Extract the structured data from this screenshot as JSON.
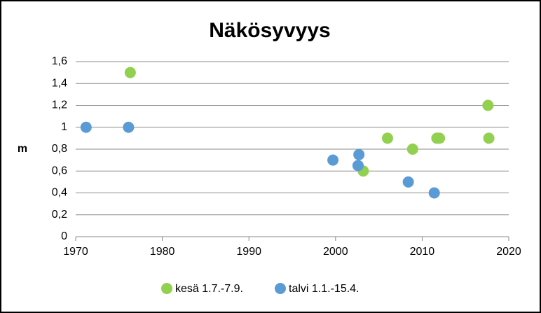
{
  "chart_data": {
    "type": "scatter",
    "title": "Näkösyvyys",
    "y_label": "m",
    "series": [
      {
        "name": "kesä 1.7.-7.9.",
        "color": "#92d050",
        "x": [
          1976.3,
          2003.2,
          2006,
          2008.9,
          2011.7,
          2012,
          2017.6,
          2017.7
        ],
        "values": [
          1.5,
          0.6,
          0.9,
          0.8,
          0.9,
          0.9,
          1.2,
          0.9
        ]
      },
      {
        "name": "talvi 1.1.-15.4.",
        "color": "#5b9bd5",
        "x": [
          1971.2,
          1976.1,
          1999.7,
          2002.7,
          2002.6,
          2008.4,
          2011.4
        ],
        "values": [
          1.0,
          1.0,
          0.7,
          0.75,
          0.65,
          0.5,
          0.4
        ]
      }
    ],
    "xlim": [
      1970,
      2020
    ],
    "xticks": [
      1970,
      1980,
      1990,
      2000,
      2010,
      2020
    ],
    "ylim": [
      0,
      1.6
    ],
    "yticks": [
      0,
      {
        "value": 0.2,
        "label": "0,2"
      },
      {
        "value": 0.4,
        "label": "0,4"
      },
      {
        "value": 0.6,
        "label": "0,6"
      },
      {
        "value": 0.8,
        "label": "0,8"
      },
      1,
      {
        "value": 1.2,
        "label": "1,2"
      },
      {
        "value": 1.4,
        "label": "1,4"
      },
      {
        "value": 1.6,
        "label": "1,6"
      }
    ],
    "grid": true,
    "legend": "bottom"
  }
}
